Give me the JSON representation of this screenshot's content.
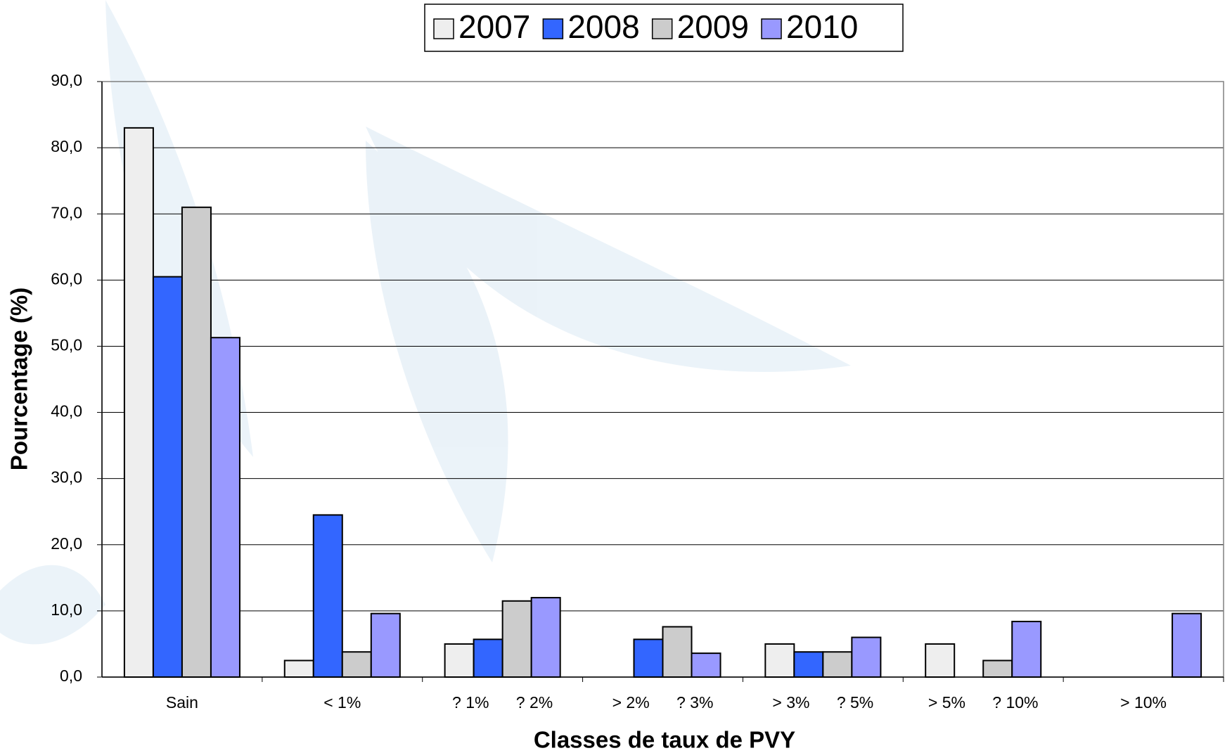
{
  "chart_data": {
    "type": "bar",
    "categories": [
      "Sain",
      "< 1%",
      "? 1%      ? 2%",
      "> 2%      ? 3%",
      "> 3%      ? 5%",
      "> 5%      ? 10%",
      "> 10%"
    ],
    "series": [
      {
        "name": "2007",
        "color": "#eeeeee",
        "values": [
          83,
          2.5,
          5,
          null,
          5,
          5,
          null
        ]
      },
      {
        "name": "2008",
        "color": "#3366ff",
        "values": [
          60.5,
          24.5,
          5.7,
          5.7,
          3.8,
          null,
          null
        ]
      },
      {
        "name": "2009",
        "color": "#cccccc",
        "values": [
          71,
          3.8,
          11.5,
          7.6,
          3.8,
          2.5,
          null
        ]
      },
      {
        "name": "2010",
        "color": "#9999ff",
        "values": [
          51.3,
          9.6,
          12,
          3.6,
          6,
          8.4,
          9.6
        ]
      }
    ],
    "ylim": [
      0,
      90
    ],
    "yticks": [
      {
        "value": 0,
        "label": "0,0"
      },
      {
        "value": 10,
        "label": "10,0"
      },
      {
        "value": 20,
        "label": "20,0"
      },
      {
        "value": 30,
        "label": "30,0"
      },
      {
        "value": 40,
        "label": "40,0"
      },
      {
        "value": 50,
        "label": "50,0"
      },
      {
        "value": 60,
        "label": "60,0"
      },
      {
        "value": 70,
        "label": "70,0"
      },
      {
        "value": 80,
        "label": "80,0"
      },
      {
        "value": 90,
        "label": "90,0"
      }
    ],
    "xlabel": "Classes de taux de PVY",
    "ylabel": "Pourcentage (%)",
    "grid": true,
    "legend": "top"
  }
}
